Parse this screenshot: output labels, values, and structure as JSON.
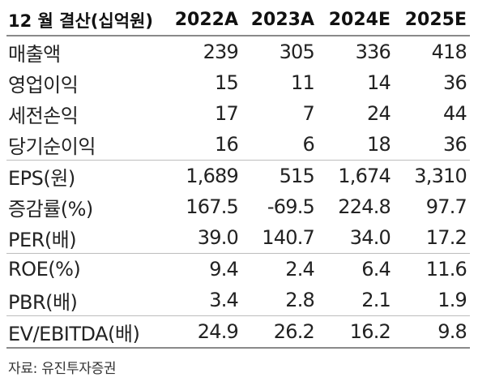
{
  "header": {
    "label": "12 월 결산(십억원)",
    "years": [
      "2022A",
      "2023A",
      "2024E",
      "2025E"
    ]
  },
  "rows": [
    {
      "label": "매출액",
      "values": [
        "239",
        "305",
        "336",
        "418"
      ]
    },
    {
      "label": "영업이익",
      "values": [
        "15",
        "11",
        "14",
        "36"
      ]
    },
    {
      "label": "세전손익",
      "values": [
        "17",
        "7",
        "24",
        "44"
      ]
    },
    {
      "label": "당기순이익",
      "values": [
        "16",
        "6",
        "18",
        "36"
      ]
    },
    {
      "label": "EPS(원)",
      "values": [
        "1,689",
        "515",
        "1,674",
        "3,310"
      ]
    },
    {
      "label": "증감률(%)",
      "values": [
        "167.5",
        "-69.5",
        "224.8",
        "97.7"
      ]
    },
    {
      "label": "PER(배)",
      "values": [
        "39.0",
        "140.7",
        "34.0",
        "17.2"
      ]
    },
    {
      "label": "ROE(%)",
      "values": [
        "9.4",
        "2.4",
        "6.4",
        "11.6"
      ]
    },
    {
      "label": "PBR(배)",
      "values": [
        "3.4",
        "2.8",
        "2.1",
        "1.9"
      ]
    },
    {
      "label": "EV/EBITDA(배)",
      "values": [
        "24.9",
        "26.2",
        "16.2",
        "9.8"
      ]
    }
  ],
  "source": "자료: 유진투자증권"
}
